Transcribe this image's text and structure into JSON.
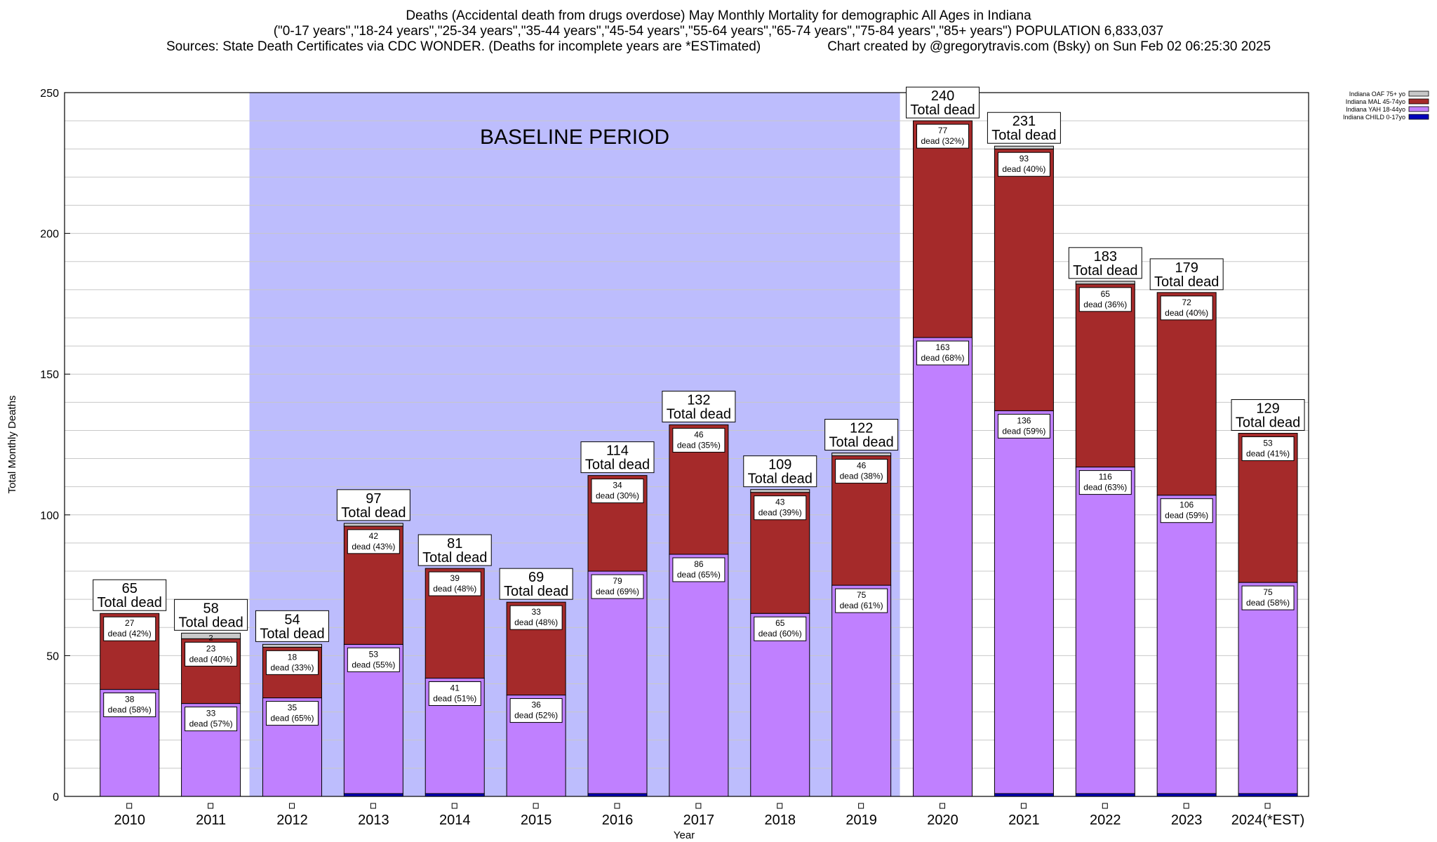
{
  "chart_data": {
    "type": "bar",
    "stacked": true,
    "title": "Deaths (Accidental death from drugs overdose) May Monthly Mortality for demographic All Ages in Indiana",
    "subtitle": "(\"0-17 years\",\"18-24 years\",\"25-34 years\",\"35-44 years\",\"45-54 years\",\"55-64 years\",\"65-74 years\",\"75-84 years\",\"85+ years\") POPULATION 6,833,037",
    "sources": "Sources: State Death Certificates via CDC WONDER. (Deaths for incomplete years are *ESTimated)",
    "credit": "Chart created by @gregorytravis.com (Bsky) on Sun Feb 02 06:25:30 2025",
    "xlabel": "Year",
    "ylabel": "Total Monthly Deaths",
    "ylim": [
      0,
      250
    ],
    "yticks": [
      0,
      50,
      100,
      150,
      200,
      250
    ],
    "grid": true,
    "legend_position": "top-right",
    "baseline": {
      "label": "BASELINE PERIOD",
      "from": "2012",
      "to": "2019",
      "color": "#bdbdfd"
    },
    "total_label_suffix": "Total dead",
    "categories": [
      "2010",
      "2011",
      "2012",
      "2013",
      "2014",
      "2015",
      "2016",
      "2017",
      "2018",
      "2019",
      "2020",
      "2021",
      "2022",
      "2023",
      "2024(*EST)"
    ],
    "totals": [
      65,
      58,
      54,
      97,
      81,
      69,
      114,
      132,
      109,
      122,
      240,
      231,
      183,
      179,
      129
    ],
    "series": [
      {
        "name": "Indiana CHILD 0-17yo",
        "color": "#0000bb",
        "values": [
          0,
          0,
          0,
          1,
          1,
          0,
          1,
          0,
          0,
          0,
          0,
          1,
          1,
          1,
          1
        ]
      },
      {
        "name": "Indiana YAH 18-44yo",
        "color": "#c080ff",
        "values": [
          38,
          33,
          35,
          53,
          41,
          36,
          79,
          86,
          65,
          75,
          163,
          136,
          116,
          106,
          75
        ],
        "labels": [
          "38|dead (58%)",
          "33|dead (57%)",
          "35|dead (65%)",
          "53|dead (55%)",
          "41|dead (51%)",
          "36|dead (52%)",
          "79|dead (69%)",
          "86|dead (65%)",
          "65|dead (60%)",
          "75|dead (61%)",
          "163|dead (68%)",
          "136|dead (59%)",
          "116|dead (63%)",
          "106|dead (59%)",
          "75|dead (58%)"
        ]
      },
      {
        "name": "Indiana MAL 45-74yo",
        "color": "#a52a2a",
        "values": [
          27,
          23,
          18,
          42,
          39,
          33,
          34,
          46,
          43,
          46,
          77,
          93,
          65,
          72,
          53
        ],
        "labels": [
          "27|dead (42%)",
          "23|dead (40%)",
          "18|dead (33%)",
          "42|dead (43%)",
          "39|dead (48%)",
          "33|dead (48%)",
          "34|dead (30%)",
          "46|dead (35%)",
          "43|dead (39%)",
          "46|dead (38%)",
          "77|dead (32%)",
          "93|dead (40%)",
          "65|dead (36%)",
          "72|dead (40%)",
          "53|dead (41%)"
        ]
      },
      {
        "name": "Indiana OAF 75+ yo",
        "color": "#c8c8c8",
        "values": [
          0,
          2,
          1,
          1,
          0,
          0,
          0,
          0,
          1,
          1,
          0,
          1,
          1,
          0,
          0
        ],
        "labels": [
          "",
          "2",
          "",
          "",
          "",
          "",
          "",
          "",
          "",
          "",
          "",
          "",
          "",
          "",
          ""
        ]
      }
    ]
  }
}
